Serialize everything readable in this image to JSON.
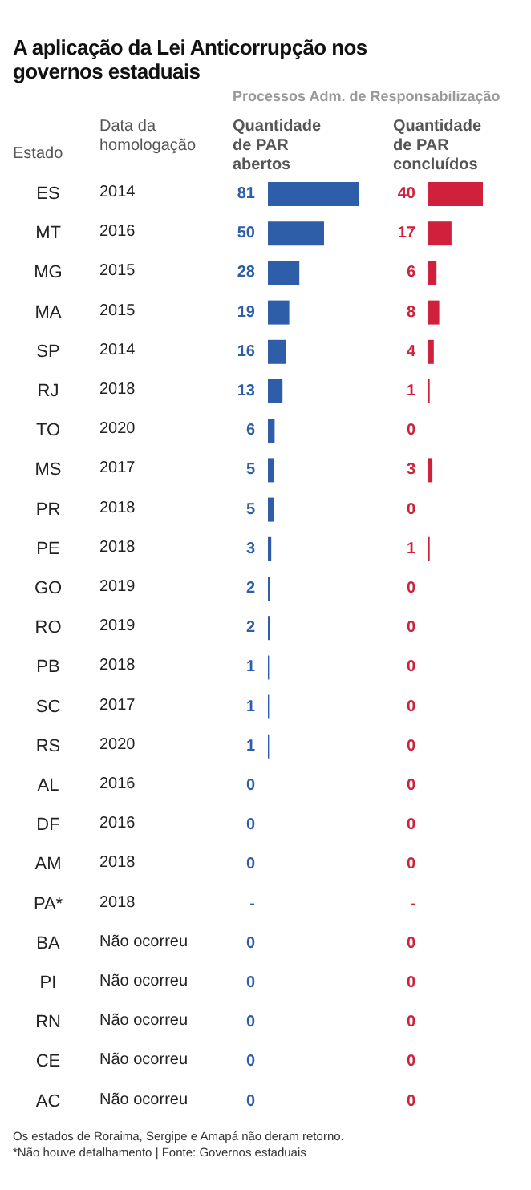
{
  "chart_data": [
    {
      "type": "other",
      "title": "A aplicação da Lei Anticorrupção nos governos estaduais",
      "subtitle": "Processos Adm. de Responsabilização",
      "annotations": [
        "Os estados de Roraima, Sergipe e Amapá não deram retorno.",
        "*Não houve detalhamento | Fonte: Governos estaduais"
      ]
    },
    {
      "type": "bar",
      "orientation": "horizontal",
      "title": "Quantidade de PAR abertos",
      "ylabel": "Estado",
      "tick_labels": "y",
      "color": "#2f5ea8",
      "categories": [
        "ES",
        "MT",
        "MG",
        "MA",
        "SP",
        "RJ",
        "TO",
        "MS",
        "PR",
        "PE",
        "GO",
        "RO",
        "PB",
        "SC",
        "RS",
        "AL",
        "DF",
        "AM",
        "PA*",
        "BA",
        "PI",
        "RN",
        "CE",
        "AC"
      ],
      "values": [
        81,
        50,
        28,
        19,
        16,
        13,
        6,
        5,
        5,
        3,
        2,
        2,
        1,
        1,
        1,
        0,
        0,
        0,
        null,
        0,
        0,
        0,
        0,
        0
      ],
      "value_labels": [
        "81",
        "50",
        "28",
        "19",
        "16",
        "13",
        "6",
        "5",
        "5",
        "3",
        "2",
        "2",
        "1",
        "1",
        "1",
        "0",
        "0",
        "0",
        "-",
        "0",
        "0",
        "0",
        "0",
        "0"
      ],
      "annotations": [
        "Data da homologação",
        "2014",
        "2016",
        "2015",
        "2015",
        "2014",
        "2018",
        "2020",
        "2017",
        "2018",
        "2018",
        "2019",
        "2019",
        "2018",
        "2017",
        "2020",
        "2016",
        "2016",
        "2018",
        "2018",
        "Não ocorreu",
        "Não ocorreu",
        "Não ocorreu",
        "Não ocorreu",
        "Não ocorreu"
      ]
    },
    {
      "type": "bar",
      "orientation": "horizontal",
      "title": "Quantidade de PAR concluídos",
      "tick_labels": false,
      "color": "#d0213c",
      "categories": [
        null,
        null,
        null,
        null,
        null,
        null,
        null,
        null,
        null,
        null,
        null,
        null,
        null,
        null,
        null,
        null,
        null,
        null,
        null,
        null,
        null,
        null,
        null,
        null
      ],
      "values": [
        40,
        17,
        6,
        8,
        4,
        1,
        0,
        3,
        0,
        1,
        0,
        0,
        0,
        0,
        0,
        0,
        0,
        0,
        null,
        0,
        0,
        0,
        0,
        0
      ],
      "value_labels": [
        "40",
        "17",
        "6",
        "8",
        "4",
        "1",
        "0",
        "3",
        "0",
        "1",
        "0",
        "0",
        "0",
        "0",
        "0",
        "0",
        "0",
        "0",
        "-",
        "0",
        "0",
        "0",
        "0",
        "0"
      ]
    }
  ]
}
